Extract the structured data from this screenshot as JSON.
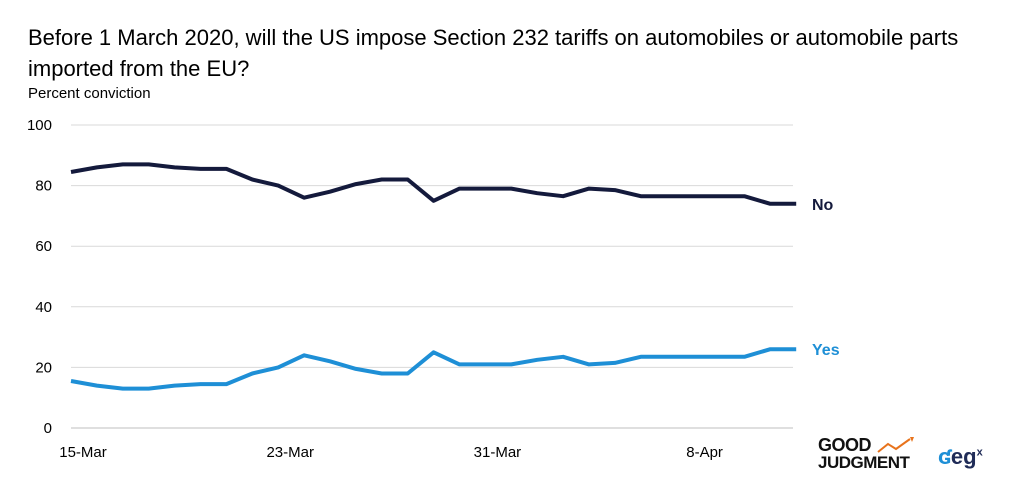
{
  "chart_data": {
    "type": "line",
    "title": "Before 1 March 2020, will the US impose Section 232 tariffs on automobiles or automobile parts imported from the EU?",
    "ylabel": "Percent conviction",
    "ylim": [
      0,
      100
    ],
    "yticks": [
      0,
      20,
      40,
      60,
      80,
      100
    ],
    "xtick_labels": [
      "15-Mar",
      "23-Mar",
      "31-Mar",
      "8-Apr"
    ],
    "xtick_index": [
      0,
      8,
      16,
      24
    ],
    "grid": true,
    "series": [
      {
        "name": "No",
        "color": "#141a3c",
        "values": [
          84.5,
          86,
          87,
          87,
          86,
          85.5,
          85.5,
          82,
          80,
          76,
          78,
          80.5,
          82,
          82,
          75,
          79,
          79,
          79,
          77.5,
          76.5,
          79,
          78.5,
          76.5,
          76.5,
          76.5,
          76.5,
          76.5,
          74,
          74
        ]
      },
      {
        "name": "Yes",
        "color": "#1e8fd6",
        "values": [
          15.5,
          14,
          13,
          13,
          14,
          14.5,
          14.5,
          18,
          20,
          24,
          22,
          19.5,
          18,
          18,
          25,
          21,
          21,
          21,
          22.5,
          23.5,
          21,
          21.5,
          23.5,
          23.5,
          23.5,
          23.5,
          23.5,
          26,
          26
        ]
      }
    ]
  },
  "logos": {
    "good_judgment_line1": "GOOD",
    "good_judgment_line2": "JUDGMENT",
    "egx_text": "eg",
    "egx_sup": "x"
  }
}
